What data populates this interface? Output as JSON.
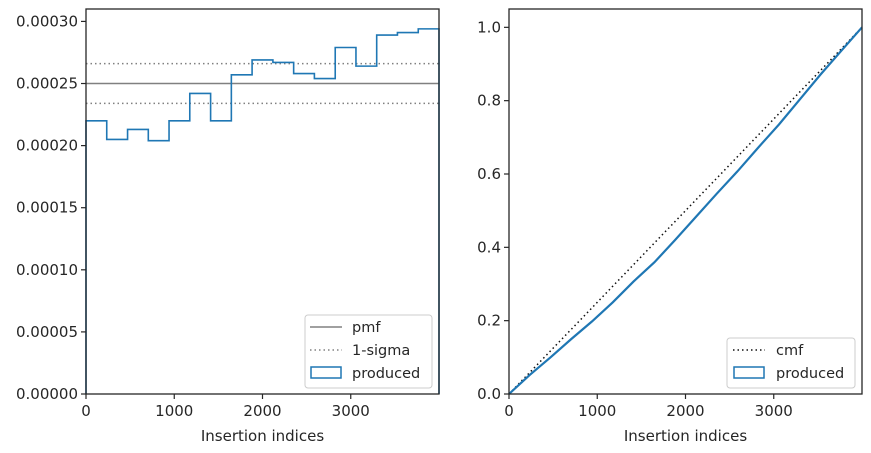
{
  "chart_data": [
    {
      "type": "step-histogram",
      "xlabel": "Insertion indices",
      "ylabel": "",
      "xlim": [
        0,
        4000
      ],
      "ylim": [
        0,
        0.00031
      ],
      "xticks": [
        "0",
        "1000",
        "2000",
        "3000"
      ],
      "xtick_values": [
        0,
        1000,
        2000,
        3000
      ],
      "yticks": [
        "0.00000",
        "0.00005",
        "0.00010",
        "0.00015",
        "0.00020",
        "0.00025",
        "0.00030"
      ],
      "ytick_values": [
        0,
        5e-05,
        0.0001,
        0.00015,
        0.0002,
        0.00025,
        0.0003
      ],
      "hlines": [
        {
          "name": "pmf",
          "value": 0.00025,
          "style": "solid",
          "color": "#808080"
        },
        {
          "name": "1-sigma",
          "value": 0.000266,
          "style": "dotted",
          "color": "#808080"
        },
        {
          "name": "1-sigma",
          "value": 0.000234,
          "style": "dotted",
          "color": "#808080"
        }
      ],
      "histogram": {
        "name": "produced",
        "color": "#1f77b4",
        "bin_edges": [
          0,
          235,
          471,
          706,
          941,
          1176,
          1412,
          1647,
          1882,
          2118,
          2353,
          2588,
          2824,
          3059,
          3294,
          3529,
          3765,
          4000
        ],
        "values": [
          0.00022,
          0.000205,
          0.000213,
          0.000204,
          0.00022,
          0.000242,
          0.00022,
          0.000257,
          0.000269,
          0.000267,
          0.000258,
          0.000254,
          0.000279,
          0.000264,
          0.000289,
          0.000291,
          0.000294
        ]
      },
      "legend": {
        "placement": "lower-right",
        "entries": [
          "pmf",
          "1-sigma",
          "produced"
        ]
      }
    },
    {
      "type": "line",
      "xlabel": "Insertion indices",
      "ylabel": "",
      "xlim": [
        0,
        4000
      ],
      "ylim": [
        0,
        1.05
      ],
      "xticks": [
        "0",
        "1000",
        "2000",
        "3000"
      ],
      "xtick_values": [
        0,
        1000,
        2000,
        3000
      ],
      "yticks": [
        "0.0",
        "0.2",
        "0.4",
        "0.6",
        "0.8",
        "1.0"
      ],
      "ytick_values": [
        0,
        0.2,
        0.4,
        0.6,
        0.8,
        1.0
      ],
      "series": [
        {
          "name": "cmf",
          "style": "dotted",
          "color": "#111111",
          "x": [
            0,
            4000
          ],
          "y": [
            0,
            1.0
          ]
        },
        {
          "name": "produced",
          "style": "solid",
          "color": "#1f77b4",
          "x": [
            0,
            235,
            471,
            706,
            941,
            1176,
            1412,
            1647,
            1882,
            2118,
            2353,
            2588,
            2824,
            3059,
            3294,
            3529,
            3765,
            4000
          ],
          "y": [
            0,
            0.052,
            0.1,
            0.15,
            0.198,
            0.25,
            0.307,
            0.359,
            0.42,
            0.483,
            0.546,
            0.607,
            0.672,
            0.735,
            0.803,
            0.871,
            0.936,
            1.0
          ]
        }
      ],
      "legend": {
        "placement": "lower-right",
        "entries": [
          "cmf",
          "produced"
        ]
      }
    }
  ]
}
